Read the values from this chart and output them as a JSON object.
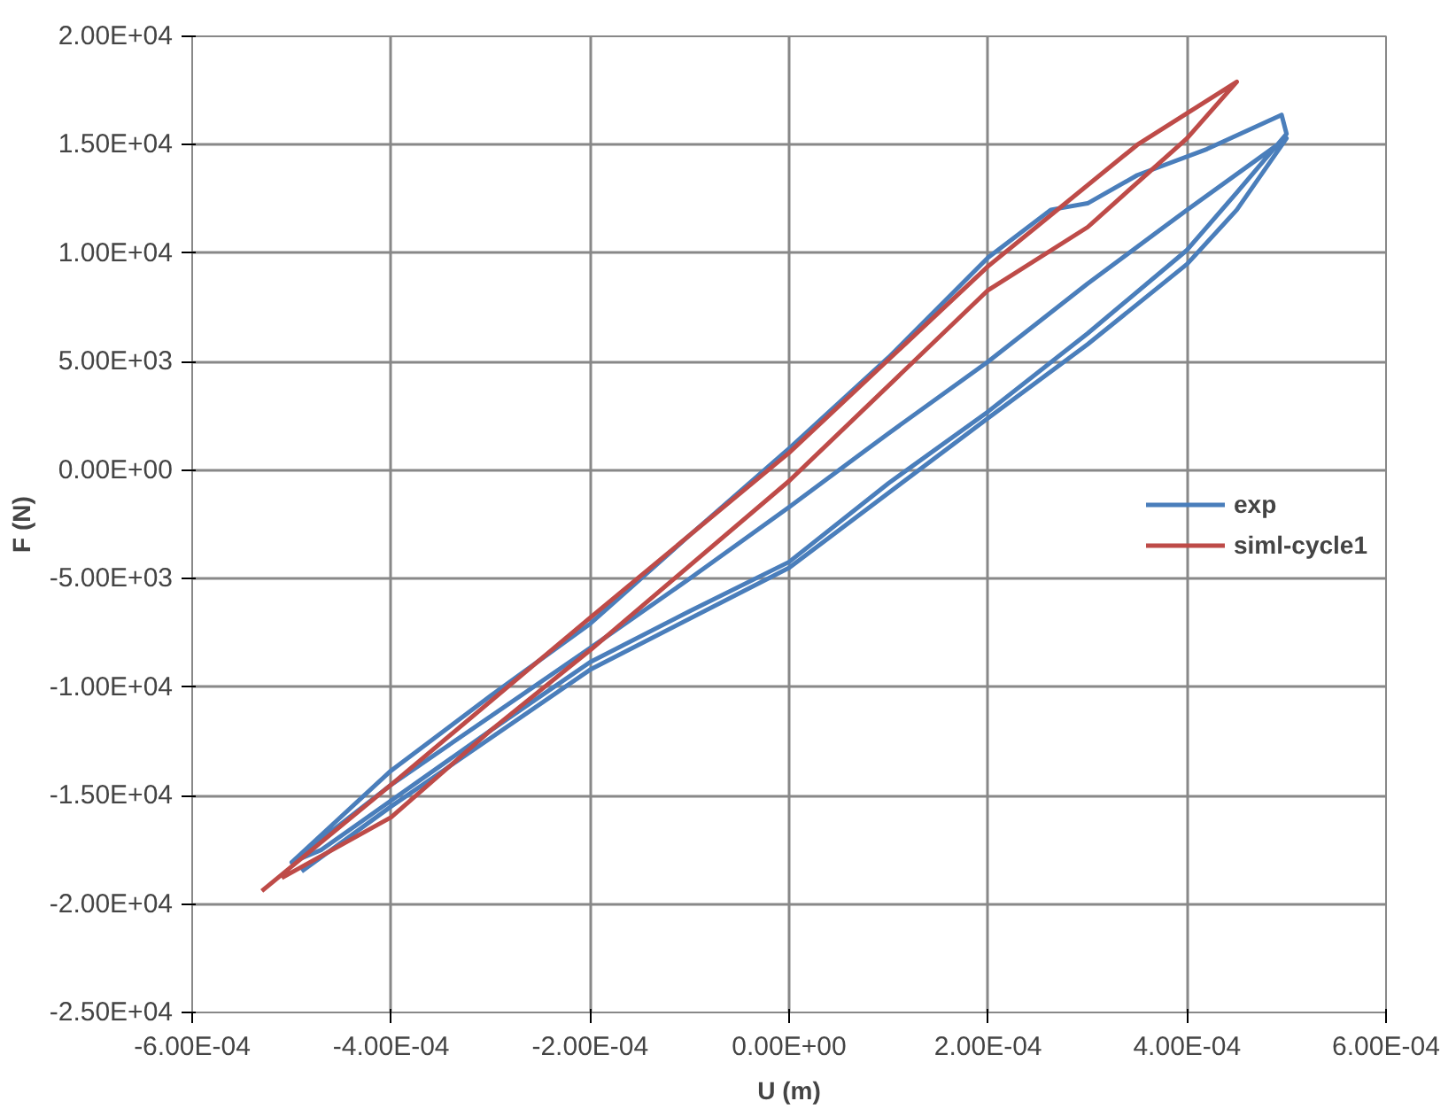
{
  "chart_data": {
    "type": "line",
    "xlabel": "U (m)",
    "ylabel": "F (N)",
    "xlim": [
      -0.0006,
      0.0006
    ],
    "ylim": [
      -25000,
      20000
    ],
    "xticks": [
      {
        "value": -0.0006,
        "label": "-6.00E-04"
      },
      {
        "value": -0.0004,
        "label": "-4.00E-04"
      },
      {
        "value": -0.0002,
        "label": "-2.00E-04"
      },
      {
        "value": 0,
        "label": "0.00E+00"
      },
      {
        "value": 0.0002,
        "label": "2.00E-04"
      },
      {
        "value": 0.0004,
        "label": "4.00E-04"
      },
      {
        "value": 0.0006,
        "label": "6.00E-04"
      }
    ],
    "yticks": [
      {
        "value": -25000,
        "label": "-2.50E+04"
      },
      {
        "value": -20000,
        "label": "-2.00E+04"
      },
      {
        "value": -15000,
        "label": "-1.50E+04"
      },
      {
        "value": -10000,
        "label": "-1.00E+04"
      },
      {
        "value": -5000,
        "label": "-5.00E+03"
      },
      {
        "value": 0,
        "label": "0.00E+00"
      },
      {
        "value": 5000,
        "label": "5.00E+03"
      },
      {
        "value": 10000,
        "label": "1.00E+04"
      },
      {
        "value": 15000,
        "label": "1.50E+04"
      },
      {
        "value": 20000,
        "label": "2.00E+04"
      }
    ],
    "grid": true,
    "legend": "right",
    "marker": "none",
    "series": [
      {
        "name": "exp",
        "color": "#4a7ebb",
        "x": [
          -0.0005,
          -0.0004,
          -0.0003,
          -0.0002,
          -0.0001,
          0,
          0.0001,
          0.0002,
          0.000263,
          0.0003,
          0.00035,
          0.00042,
          0.000495,
          0.0005,
          0.00045,
          0.0004,
          0.0003,
          0.0002,
          0.0001,
          0,
          -0.0001,
          -0.0002,
          -0.0003,
          -0.0004,
          -0.00047,
          -0.0005,
          -0.0004,
          -0.0002,
          -0.0001,
          0,
          0.0001,
          0.0002,
          0.0003,
          0.0004,
          0.0005,
          0.00045,
          0.0004,
          0.0003,
          0.0002,
          0,
          -0.0002,
          -0.0004,
          -0.00049
        ],
        "values": [
          -18080,
          -13850,
          -10400,
          -7080,
          -3000,
          1000,
          5200,
          9800,
          12000,
          12300,
          13600,
          14800,
          16380,
          15500,
          12800,
          10150,
          6300,
          2700,
          -600,
          -4230,
          -6500,
          -8850,
          -12000,
          -15230,
          -17500,
          -18080,
          -14500,
          -8200,
          -5000,
          -1700,
          1700,
          5000,
          8600,
          12000,
          15300,
          12000,
          9500,
          5800,
          2400,
          -4500,
          -9200,
          -15500,
          -18500
        ]
      },
      {
        "name": "siml-cycle1",
        "color": "#be4b48",
        "x": [
          -0.00053,
          -0.0004,
          -0.0002,
          0,
          0.0002,
          0.00035,
          0.00045,
          0.0004,
          0.0003,
          0.0002,
          0,
          -0.0002,
          -0.0003,
          -0.0004,
          -0.00051
        ],
        "values": [
          -19400,
          -14500,
          -6800,
          800,
          9400,
          15000,
          17900,
          15300,
          11200,
          8300,
          -500,
          -8300,
          -12000,
          -16000,
          -18800
        ]
      }
    ]
  }
}
